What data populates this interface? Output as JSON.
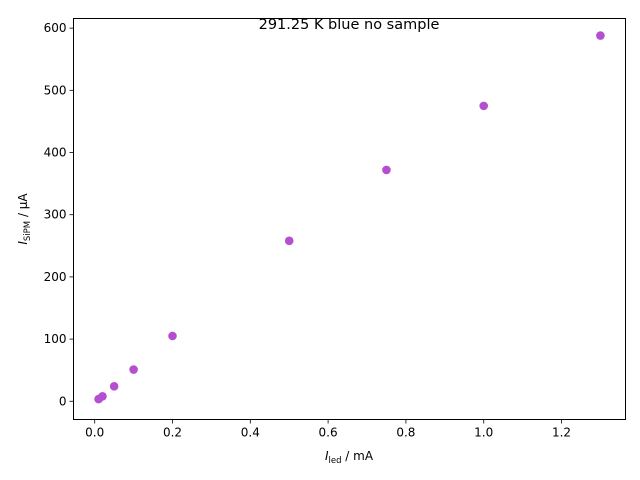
{
  "chart_data": {
    "type": "scatter",
    "title": "291.25 K blue no sample",
    "xlabel": {
      "symbol": "I",
      "subscript": "led",
      "unit": " / mA"
    },
    "ylabel": {
      "symbol": "I",
      "subscript": "SiPM",
      "unit": " / μA"
    },
    "xlim": [
      -0.0545,
      1.3645
    ],
    "ylim": [
      -29.3,
      615.5
    ],
    "xticks": [
      0.0,
      0.2,
      0.4,
      0.6,
      0.8,
      1.0,
      1.2
    ],
    "xtick_labels": [
      "0.0",
      "0.2",
      "0.4",
      "0.6",
      "0.8",
      "1.0",
      "1.2"
    ],
    "yticks": [
      0,
      100,
      200,
      300,
      400,
      500,
      600
    ],
    "ytick_labels": [
      "0",
      "100",
      "200",
      "300",
      "400",
      "500",
      "600"
    ],
    "grid": false,
    "marker_color": "#b44fd0",
    "x": [
      0.01,
      0.02,
      0.05,
      0.1,
      0.2,
      0.5,
      0.75,
      1.0,
      1.3
    ],
    "y": [
      3.5,
      8,
      24,
      51,
      105,
      258,
      372,
      475,
      588
    ]
  }
}
